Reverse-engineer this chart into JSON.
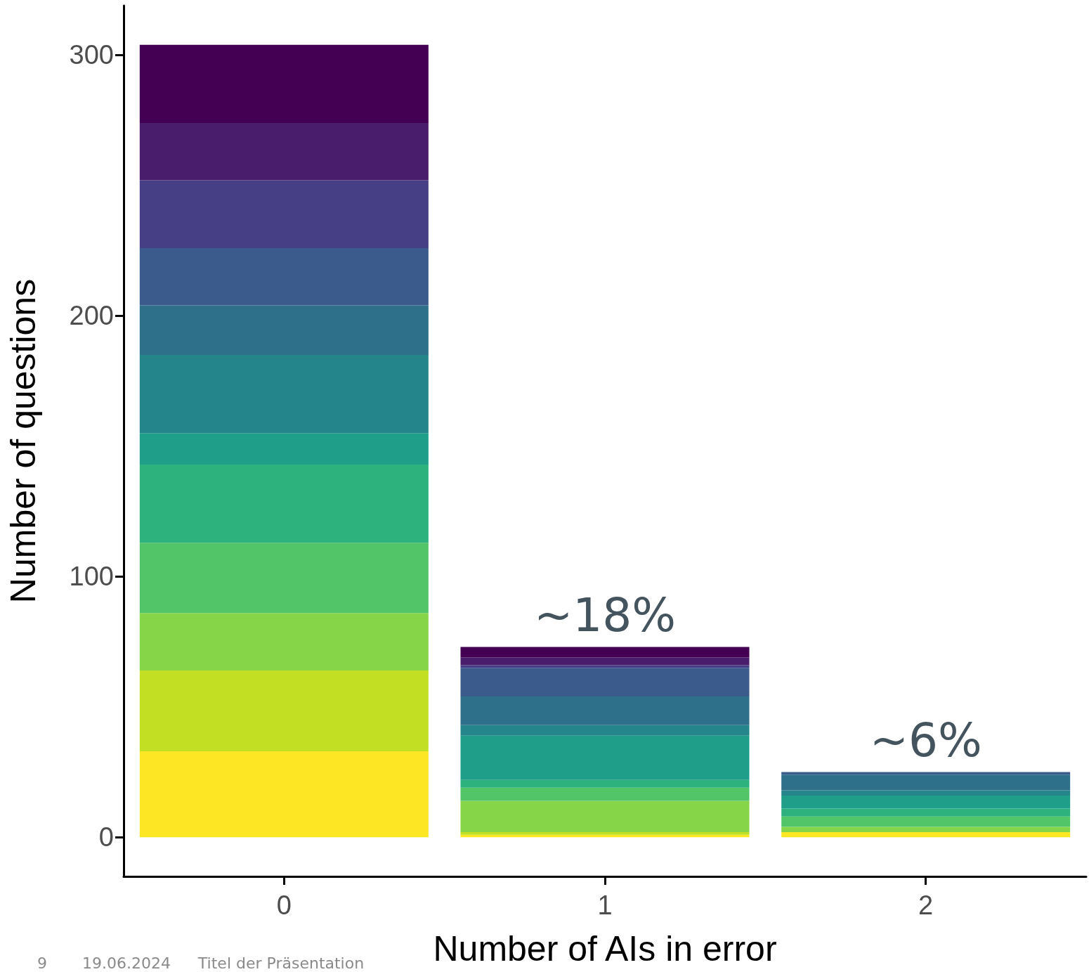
{
  "chart_data": {
    "type": "bar",
    "stacked": true,
    "xlabel": "Number of AIs in error",
    "ylabel": "Number of questions",
    "categories": [
      "0",
      "1",
      "2"
    ],
    "series": [
      {
        "color": "#fde725",
        "values": [
          33,
          1,
          2
        ]
      },
      {
        "color": "#c2df23",
        "values": [
          31,
          1,
          null
        ]
      },
      {
        "color": "#86d549",
        "values": [
          22,
          12,
          2
        ]
      },
      {
        "color": "#52c569",
        "values": [
          27,
          5,
          4
        ]
      },
      {
        "color": "#2db27d",
        "values": [
          30,
          3,
          3
        ]
      },
      {
        "color": "#1f9e89",
        "values": [
          12,
          17,
          5
        ]
      },
      {
        "color": "#24868a",
        "values": [
          30,
          4,
          2
        ]
      },
      {
        "color": "#2e6f8a",
        "values": [
          19,
          11,
          6
        ]
      },
      {
        "color": "#3a5b8c",
        "values": [
          22,
          11,
          1
        ]
      },
      {
        "color": "#463f85",
        "values": [
          26,
          1,
          null
        ]
      },
      {
        "color": "#4a1c6c",
        "values": [
          22,
          3,
          null
        ]
      },
      {
        "color": "#440154",
        "values": [
          30,
          4,
          null
        ]
      }
    ],
    "ylim": [
      -15,
      319
    ],
    "yticks": [
      0,
      100,
      200,
      300
    ],
    "grid": false,
    "annotations": [
      {
        "text": "~18%",
        "x": "1",
        "y": 73
      },
      {
        "text": "~6%",
        "x": "2",
        "y": 25
      },
      "9",
      "19.06.2024",
      "Titel der Präsentation"
    ]
  }
}
